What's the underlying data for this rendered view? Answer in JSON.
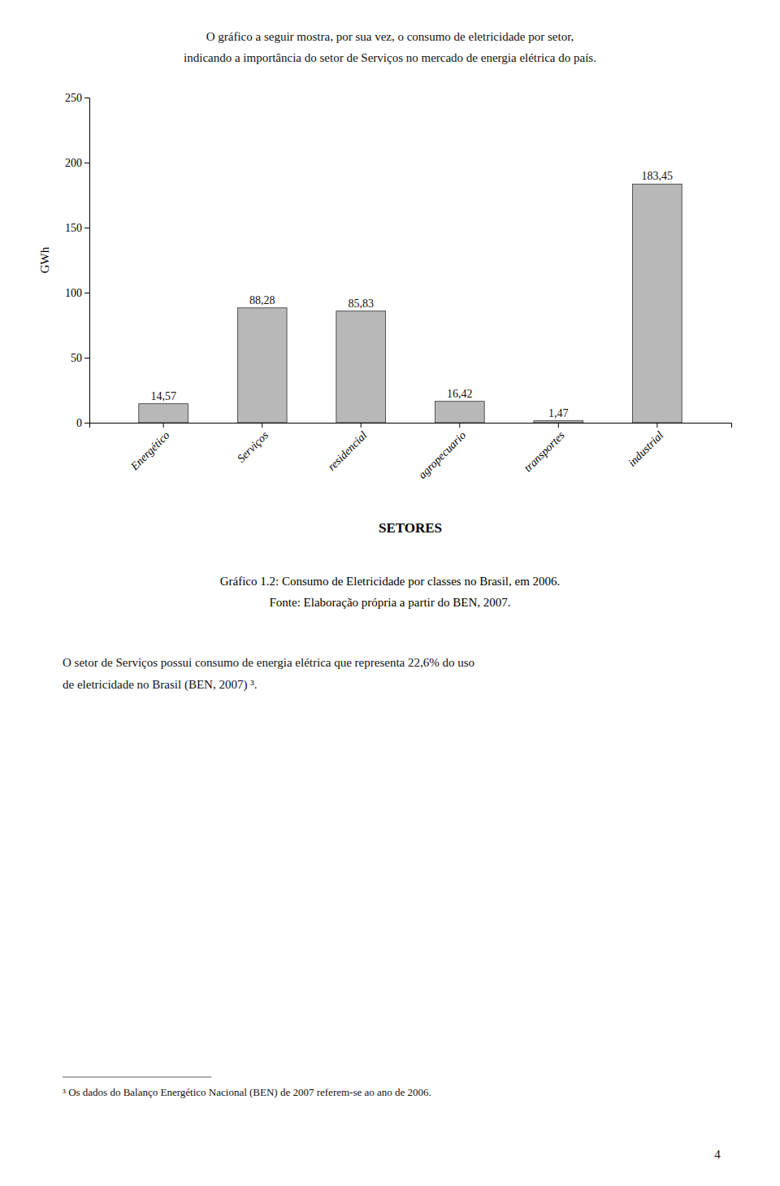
{
  "chart_data": {
    "type": "bar",
    "title": "Gráfico 1.2: Consumo de Eletricidade por classes no Brasil, em 2006.",
    "subtitle": "Fonte: Elaboração própria a partir do BEN, 2007.",
    "annotations": [
      "O gráfico a seguir mostra, por sua vez, o consumo de eletricidade por setor,",
      "indicando a importância do setor de Serviços no mercado de energia elétrica do país.",
      "O setor de Serviços possui consumo de energia elétrica que representa 22,6% do uso",
      "de eletricidade no Brasil (BEN, 2007) ³.",
      "³ Os dados do Balanço Energético Nacional (BEN) de 2007 referem-se ao ano de 2006.",
      "4"
    ],
    "x_label": "SETORES",
    "y_label": "GWh",
    "categories": [
      "Energético",
      "Serviços",
      "residencial",
      "agropecuario",
      "transportes",
      "industrial"
    ],
    "values": [
      14.57,
      88.28,
      85.83,
      16.42,
      1.47,
      183.45
    ],
    "value_labels": [
      "14,57",
      "88,28",
      "85,83",
      "16,42",
      "1,47",
      "183,45"
    ],
    "color": "#b8b8b8",
    "ylim": [
      0,
      250
    ],
    "yticks": [
      0,
      50,
      100,
      150,
      200,
      250
    ],
    "data_labels": true,
    "grid": false
  }
}
